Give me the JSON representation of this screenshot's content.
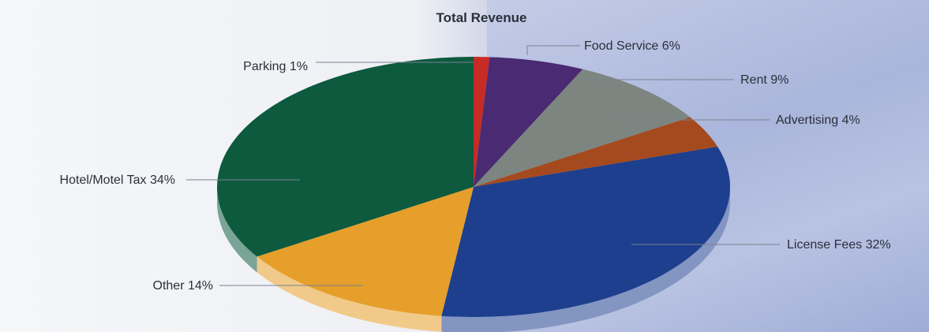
{
  "chart_data": {
    "type": "pie",
    "title": "Total Revenue",
    "slices": [
      {
        "label": "Parking 1%",
        "name": "Parking",
        "value": 1,
        "color": "#c62b26"
      },
      {
        "label": "Food Service 6%",
        "name": "Food Service",
        "value": 6,
        "color": "#4a2a72"
      },
      {
        "label": "Rent 9%",
        "name": "Rent",
        "value": 9,
        "color": "#7d8580"
      },
      {
        "label": "Advertising 4%",
        "name": "Advertising",
        "value": 4,
        "color": "#a54a1e"
      },
      {
        "label": "License Fees 32%",
        "name": "License Fees",
        "value": 32,
        "color": "#1d3f8e"
      },
      {
        "label": "Other 14%",
        "name": "Other",
        "value": 14,
        "color": "#e59f2a"
      },
      {
        "label": "Hotel/Motel Tax  34%",
        "name": "Hotel/Motel Tax",
        "value": 34,
        "color": "#0d5a3e"
      }
    ]
  }
}
